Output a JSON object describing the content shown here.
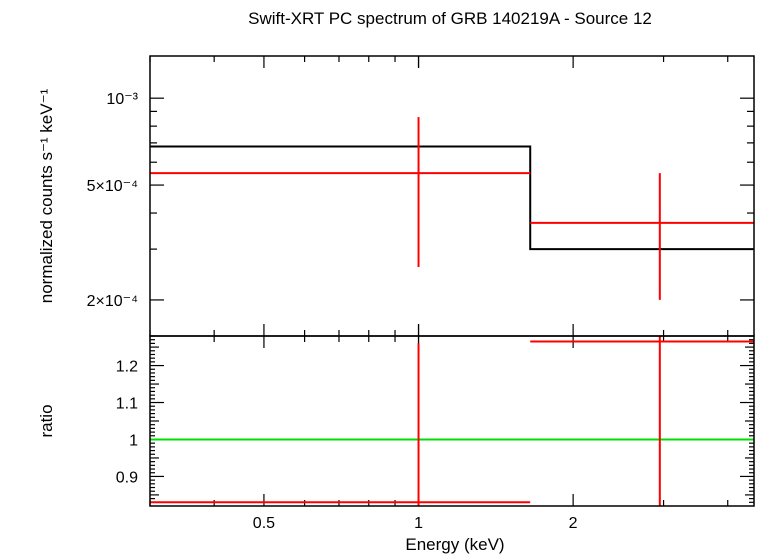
{
  "chart_data": [
    {
      "type": "line",
      "panel": "spectrum",
      "title": "Swift-XRT PC spectrum of GRB 140219A - Source 12",
      "ylabel": "normalized counts s⁻¹ keV⁻¹",
      "xlabel": "",
      "xscale": "log",
      "yscale": "log",
      "xlim": [
        0.3,
        4.5
      ],
      "ylim": [
        0.00015,
        0.0014
      ],
      "yticks": [
        {
          "value": 0.0002,
          "label": "2×10⁻⁴"
        },
        {
          "value": 0.0005,
          "label": "5×10⁻⁴"
        },
        {
          "value": 0.001,
          "label": "10⁻³"
        }
      ],
      "model": {
        "color": "#000000",
        "steps": [
          {
            "x0": 0.3,
            "x1": 1.65,
            "y": 0.00068
          },
          {
            "x0": 1.65,
            "x1": 4.5,
            "y": 0.0003
          }
        ]
      },
      "data": {
        "color": "#ff0000",
        "points": [
          {
            "x": 1.0,
            "xlo": 0.3,
            "xhi": 1.65,
            "y": 0.00055,
            "ylo": 0.00026,
            "yhi": 0.00086
          },
          {
            "x": 2.95,
            "xlo": 1.65,
            "xhi": 4.5,
            "y": 0.00037,
            "ylo": 0.0002,
            "yhi": 0.00055
          }
        ]
      }
    },
    {
      "type": "line",
      "panel": "ratio",
      "ylabel": "ratio",
      "xlabel": "Energy (keV)",
      "xscale": "log",
      "xlim": [
        0.3,
        4.5
      ],
      "ylim": [
        0.82,
        1.28
      ],
      "xticks": [
        {
          "value": 0.5,
          "label": "0.5"
        },
        {
          "value": 1,
          "label": "1"
        },
        {
          "value": 2,
          "label": "2"
        }
      ],
      "yticks": [
        {
          "value": 0.9,
          "label": "0.9"
        },
        {
          "value": 1.0,
          "label": "1"
        },
        {
          "value": 1.1,
          "label": "1.1"
        },
        {
          "value": 1.2,
          "label": "1.2"
        }
      ],
      "reference_line": {
        "y": 1.0,
        "color": "#00dd00"
      },
      "data": {
        "color": "#ff0000",
        "points": [
          {
            "x": 1.0,
            "xlo": 0.3,
            "xhi": 1.65,
            "y": 0.83,
            "ylo": 0.82,
            "yhi": 1.26
          },
          {
            "x": 2.95,
            "xlo": 1.65,
            "xhi": 4.5,
            "y": 1.265,
            "ylo": 0.82,
            "yhi": 1.28
          }
        ]
      }
    }
  ]
}
